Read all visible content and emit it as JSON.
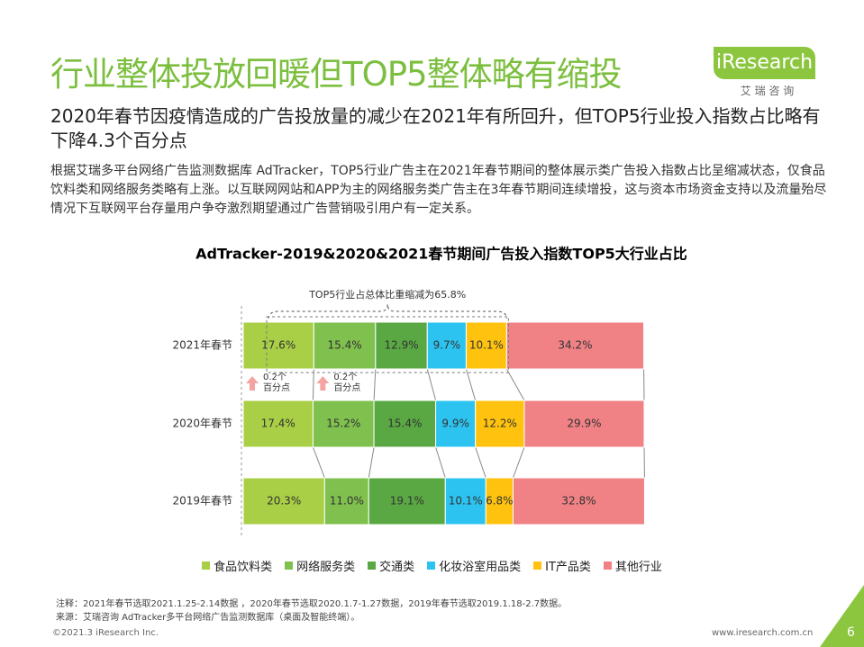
{
  "header": {
    "title": "行业整体投放回暖但TOP5整体略有缩投",
    "subtitle": "2020年春节因疫情造成的广告投放量的减少在2021年有所回升，但TOP5行业投入指数占比略有下降4.3个百分点",
    "body": "根据艾瑞多平台网络广告监测数据库 AdTracker，TOP5行业广告主在2021年春节期间的整体展示类广告投入指数占比呈缩减状态，仅食品饮料类和网络服务类略有上涨。以互联网网站和APP为主的网络服务类广告主在3年春节期间连续增投，这与资本市场资金支持以及流量殆尽情况下互联网平台存量用户争夺激烈期望通过广告营销吸引用户有一定关系。"
  },
  "logo": {
    "brand": "iResearch",
    "cn": "艾 瑞 咨 询"
  },
  "chart_data": {
    "type": "bar",
    "orientation": "horizontal",
    "stacked": true,
    "title": "AdTracker-2019&2020&2021春节期间广告投入指数TOP5大行业占比",
    "categories": [
      "2021年春节",
      "2020年春节",
      "2019年春节"
    ],
    "series": [
      {
        "name": "食品饮料类",
        "color": "#a8cf45",
        "values": [
          17.6,
          17.4,
          20.3
        ],
        "value_labels": [
          "17.6%",
          "17.4%",
          "20.3%"
        ]
      },
      {
        "name": "网络服务类",
        "color": "#7fc04e",
        "values": [
          15.4,
          15.2,
          11.0
        ],
        "value_labels": [
          "15.4%",
          "15.2%",
          "11.0%"
        ]
      },
      {
        "name": "交通类",
        "color": "#5aa843",
        "values": [
          12.9,
          15.4,
          19.1
        ],
        "value_labels": [
          "12.9%",
          "15.4%",
          "19.1%"
        ]
      },
      {
        "name": "化妆浴室用品类",
        "color": "#2cc3f0",
        "values": [
          9.7,
          9.9,
          10.1
        ],
        "value_labels": [
          "9.7%",
          "9.9%",
          "10.1%"
        ]
      },
      {
        "name": "IT产品类",
        "color": "#ffc20e",
        "values": [
          10.1,
          12.2,
          6.8
        ],
        "value_labels": [
          "10.1%",
          "12.2%",
          "6.8%"
        ]
      },
      {
        "name": "其他行业",
        "color": "#f08285",
        "values": [
          34.2,
          29.9,
          32.8
        ],
        "value_labels": [
          "34.2%",
          "29.9%",
          "32.8%"
        ]
      }
    ],
    "bracket_note": "TOP5行业占总体比重缩减为65.8%",
    "change_notes": [
      "0.2个百分点",
      "0.2个百分点"
    ]
  },
  "footer": {
    "note": "注释：2021年春节选取2021.1.25-2.14数据 ，2020年春节选取2020.1.7-1.27数据，2019年春节选取2019.1.18-2.7数据。",
    "source": "来源：艾瑞咨询 AdTracker多平台网络广告监测数据库（桌面及智能终端）。",
    "copyright": "©2021.3 iResearch Inc.",
    "url": "www.iresearch.com.cn",
    "page": "6"
  }
}
